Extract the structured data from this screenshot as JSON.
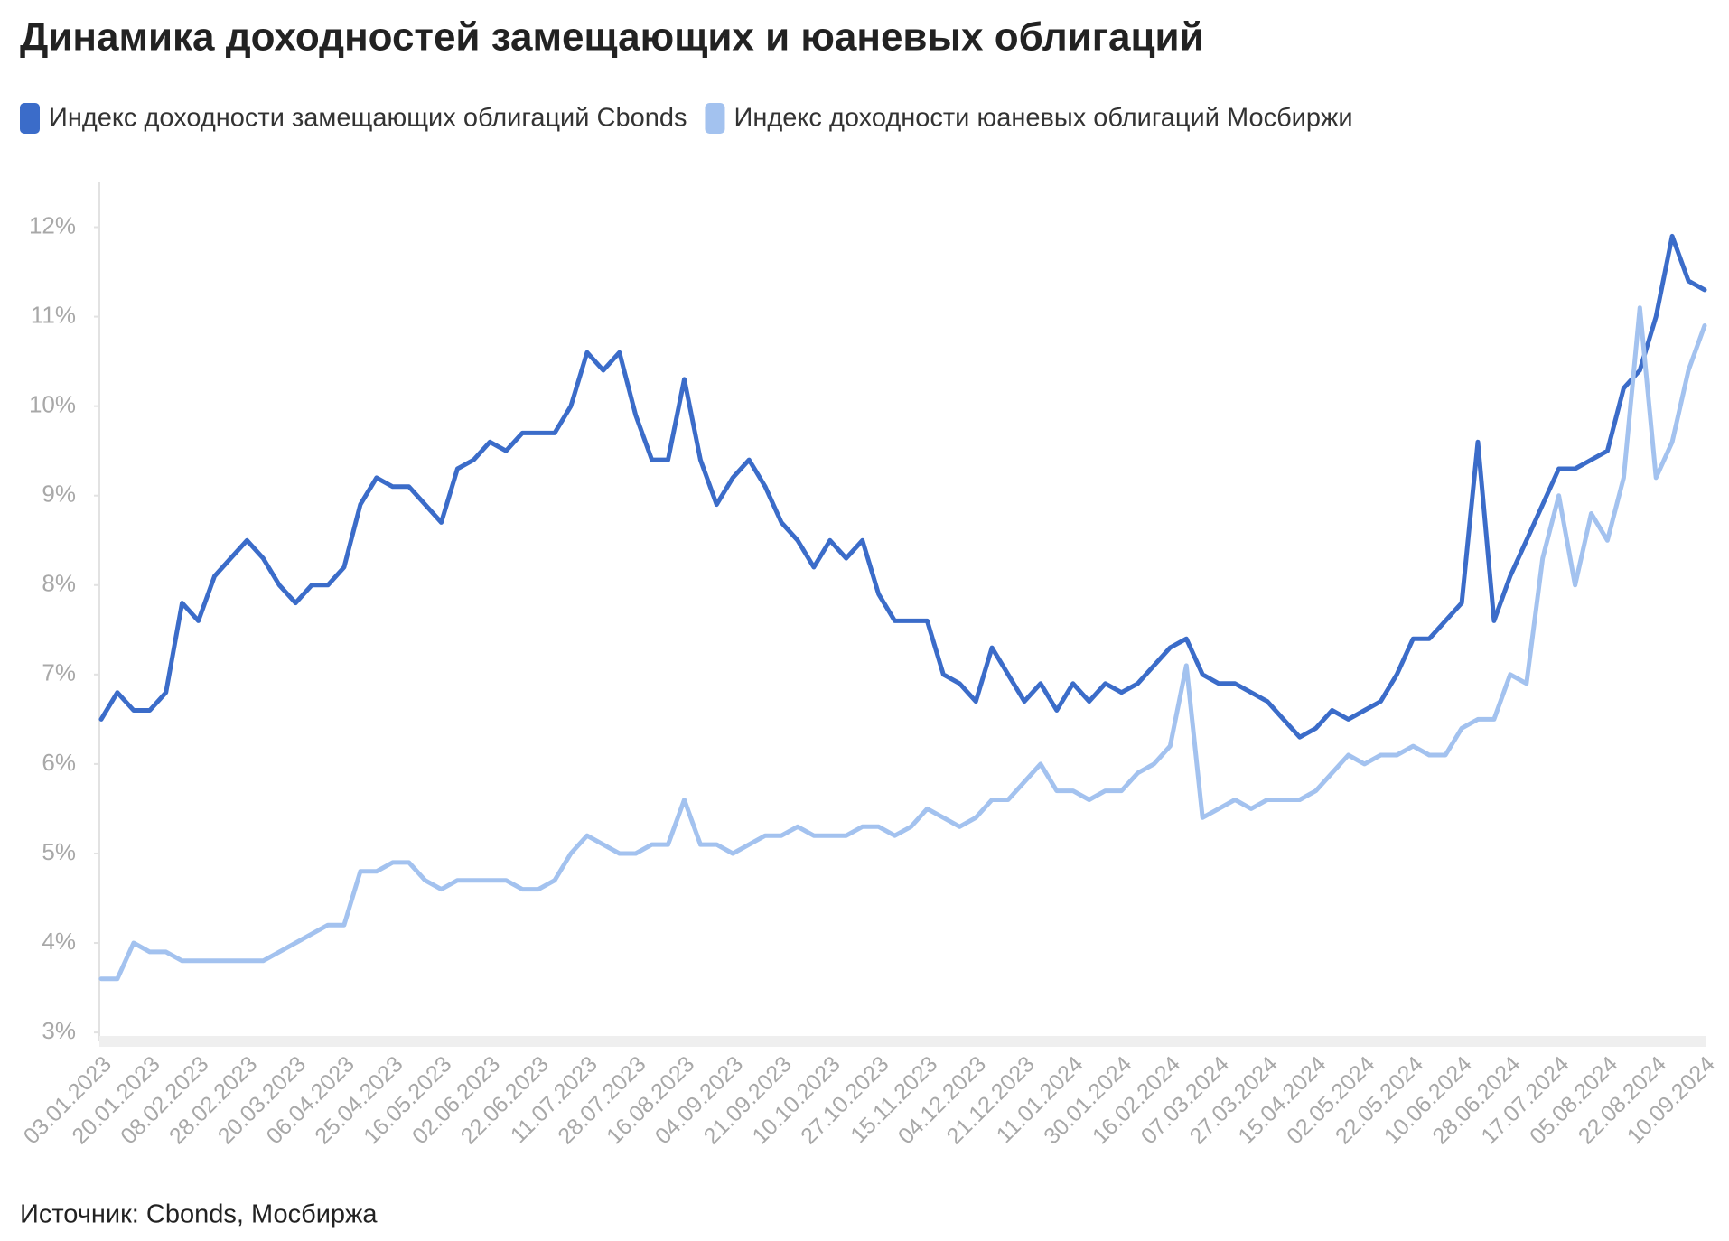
{
  "chart_data": {
    "type": "line",
    "title": "Динамика доходностей замещающих и юаневых облигаций",
    "source": "Источник: Cbonds, Мосбиржа",
    "categories": [
      "03.01.2023",
      null,
      null,
      "20.01.2023",
      null,
      null,
      "08.02.2023",
      null,
      null,
      "28.02.2023",
      null,
      null,
      "20.03.2023",
      null,
      null,
      "06.04.2023",
      null,
      null,
      "25.04.2023",
      null,
      null,
      "16.05.2023",
      null,
      null,
      "02.06.2023",
      null,
      null,
      "22.06.2023",
      null,
      null,
      "11.07.2023",
      null,
      null,
      "28.07.2023",
      null,
      null,
      "16.08.2023",
      null,
      null,
      "04.09.2023",
      null,
      null,
      "21.09.2023",
      null,
      null,
      "10.10.2023",
      null,
      null,
      "27.10.2023",
      null,
      null,
      "15.11.2023",
      null,
      null,
      "04.12.2023",
      null,
      null,
      "21.12.2023",
      null,
      null,
      "11.01.2024",
      null,
      null,
      "30.01.2024",
      null,
      null,
      "16.02.2024",
      null,
      null,
      "07.03.2024",
      null,
      null,
      "27.03.2024",
      null,
      null,
      "15.04.2024",
      null,
      null,
      "02.05.2024",
      null,
      null,
      "22.05.2024",
      null,
      null,
      "10.06.2024",
      null,
      null,
      "28.06.2024",
      null,
      null,
      "17.07.2024",
      null,
      null,
      "05.08.2024",
      null,
      null,
      "22.08.2024",
      null,
      null,
      "10.09.2024"
    ],
    "series": [
      {
        "name": "Индекс доходности замещающих облигаций Cbonds",
        "color": "#3b6cc9",
        "values": [
          6.5,
          6.8,
          6.6,
          6.6,
          6.8,
          7.8,
          7.6,
          8.1,
          8.3,
          8.5,
          8.3,
          8.0,
          7.8,
          8.0,
          8.0,
          8.2,
          8.9,
          9.2,
          9.1,
          9.1,
          8.9,
          8.7,
          9.3,
          9.4,
          9.6,
          9.5,
          9.7,
          9.7,
          9.7,
          10.0,
          10.6,
          10.4,
          10.6,
          9.9,
          9.4,
          9.4,
          10.3,
          9.4,
          8.9,
          9.2,
          9.4,
          9.1,
          8.7,
          8.5,
          8.2,
          8.5,
          8.3,
          8.5,
          7.9,
          7.6,
          7.6,
          7.6,
          7.0,
          6.9,
          6.7,
          7.3,
          7.0,
          6.7,
          6.9,
          6.6,
          6.9,
          6.7,
          6.9,
          6.8,
          6.9,
          7.1,
          7.3,
          7.4,
          7.0,
          6.9,
          6.9,
          6.8,
          6.7,
          6.5,
          6.3,
          6.4,
          6.6,
          6.5,
          6.6,
          6.7,
          7.0,
          7.4,
          7.4,
          7.6,
          7.8,
          9.6,
          7.6,
          8.1,
          8.5,
          8.9,
          9.3,
          9.3,
          9.4,
          9.5,
          10.2,
          10.4,
          11.0,
          11.9,
          11.4,
          11.3
        ]
      },
      {
        "name": "Индекс доходности юаневых облигаций Мосбиржи",
        "color": "#a3c2ef",
        "values": [
          3.6,
          3.6,
          4.0,
          3.9,
          3.9,
          3.8,
          3.8,
          3.8,
          3.8,
          3.8,
          3.8,
          3.9,
          4.0,
          4.1,
          4.2,
          4.2,
          4.8,
          4.8,
          4.9,
          4.9,
          4.7,
          4.6,
          4.7,
          4.7,
          4.7,
          4.7,
          4.6,
          4.6,
          4.7,
          5.0,
          5.2,
          5.1,
          5.0,
          5.0,
          5.1,
          5.1,
          5.6,
          5.1,
          5.1,
          5.0,
          5.1,
          5.2,
          5.2,
          5.3,
          5.2,
          5.2,
          5.2,
          5.3,
          5.3,
          5.2,
          5.3,
          5.5,
          5.4,
          5.3,
          5.4,
          5.6,
          5.6,
          5.8,
          6.0,
          5.7,
          5.7,
          5.6,
          5.7,
          5.7,
          5.9,
          6.0,
          6.2,
          7.1,
          5.4,
          5.5,
          5.6,
          5.5,
          5.6,
          5.6,
          5.6,
          5.7,
          5.9,
          6.1,
          6.0,
          6.1,
          6.1,
          6.2,
          6.1,
          6.1,
          6.4,
          6.5,
          6.5,
          7.0,
          6.9,
          8.3,
          9.0,
          8.0,
          8.8,
          8.5,
          9.2,
          11.1,
          9.2,
          9.6,
          10.4,
          10.9
        ]
      }
    ],
    "ylim": [
      2.9,
      12.5
    ],
    "yticks": [
      {
        "value": 3,
        "label": "3%"
      },
      {
        "value": 4,
        "label": "4%"
      },
      {
        "value": 5,
        "label": "5%"
      },
      {
        "value": 6,
        "label": "6%"
      },
      {
        "value": 7,
        "label": "7%"
      },
      {
        "value": 8,
        "label": "8%"
      },
      {
        "value": 9,
        "label": "9%"
      },
      {
        "value": 10,
        "label": "10%"
      },
      {
        "value": 11,
        "label": "11%"
      },
      {
        "value": 12,
        "label": "12%"
      }
    ],
    "grid": false
  }
}
